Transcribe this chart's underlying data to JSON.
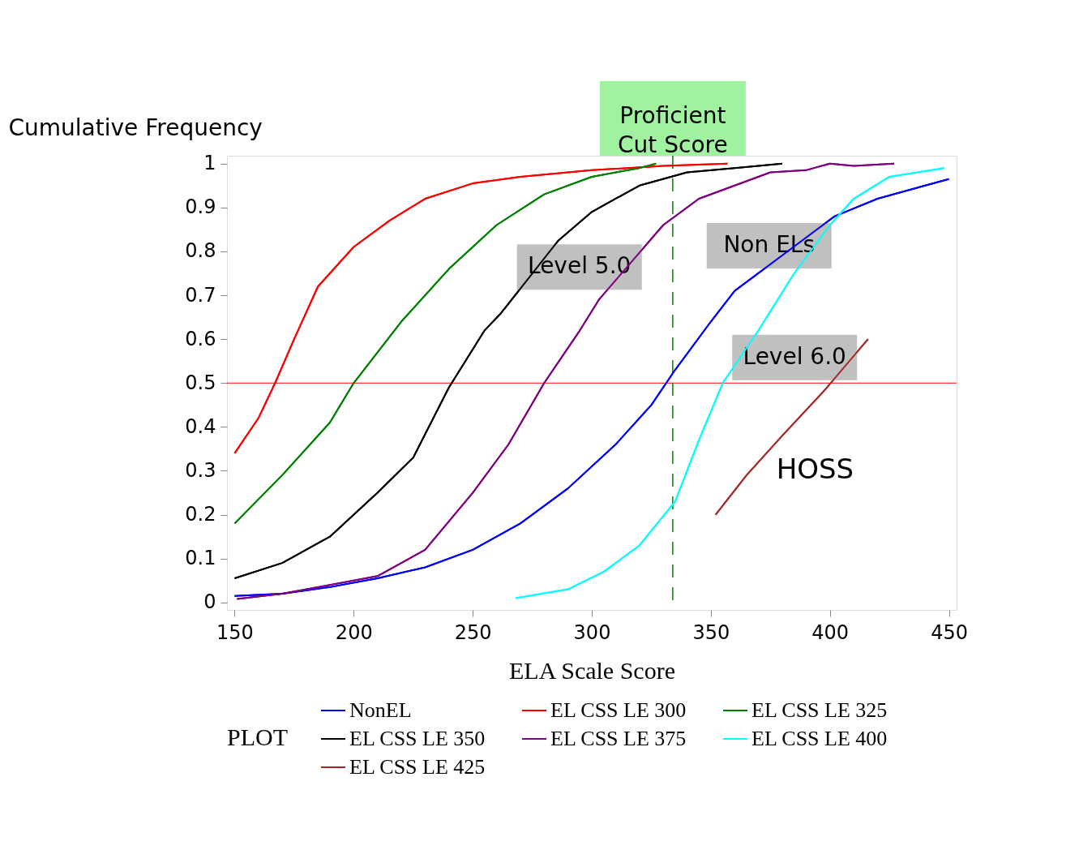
{
  "chart_data": {
    "type": "line",
    "xlabel": "ELA Scale Score",
    "ylabel": "Cumulative Frequency",
    "legend_title": "PLOT",
    "legend": "bottom",
    "grid": false,
    "marker": "none",
    "line_style": "solid",
    "xlim": [
      148.5,
      451.5
    ],
    "ylim": [
      -0.017,
      1.018
    ],
    "xticks": [
      150,
      200,
      250,
      300,
      350,
      400,
      450
    ],
    "yticks": [
      0,
      0.1,
      0.2,
      0.3,
      0.4,
      0.5,
      0.6,
      0.7,
      0.8,
      0.9,
      1
    ],
    "series": [
      {
        "name": "NonEL",
        "color": "#0000ff",
        "x": [
          150,
          170,
          190,
          210,
          230,
          250,
          270,
          290,
          310,
          325,
          335,
          350,
          360,
          402,
          420,
          440,
          450
        ],
        "values": [
          0.015,
          0.02,
          0.035,
          0.055,
          0.08,
          0.12,
          0.18,
          0.26,
          0.36,
          0.45,
          0.53,
          0.64,
          0.71,
          0.88,
          0.92,
          0.95,
          0.965
        ]
      },
      {
        "name": "EL CSS LE 300",
        "color": "#ff0000",
        "x": [
          150,
          160,
          167,
          175,
          185,
          200,
          215,
          230,
          250,
          270,
          300,
          330,
          357
        ],
        "values": [
          0.34,
          0.42,
          0.5,
          0.6,
          0.72,
          0.81,
          0.87,
          0.92,
          0.955,
          0.97,
          0.985,
          0.995,
          1.0
        ]
      },
      {
        "name": "EL CSS LE 325",
        "color": "#008000",
        "x": [
          150,
          170,
          190,
          200,
          220,
          240,
          260,
          280,
          300,
          320,
          327
        ],
        "values": [
          0.18,
          0.29,
          0.41,
          0.5,
          0.64,
          0.76,
          0.86,
          0.93,
          0.97,
          0.99,
          1.0
        ]
      },
      {
        "name": "EL CSS LE 350",
        "color": "#000000",
        "x": [
          150,
          170,
          190,
          210,
          225,
          240,
          255,
          262,
          286,
          300,
          320,
          340,
          360,
          380
        ],
        "values": [
          0.055,
          0.09,
          0.15,
          0.25,
          0.33,
          0.49,
          0.62,
          0.66,
          0.825,
          0.89,
          0.95,
          0.98,
          0.99,
          1.0
        ]
      },
      {
        "name": "EL CSS LE 375",
        "color": "#800080",
        "x": [
          151,
          170,
          190,
          210,
          230,
          250,
          265,
          280,
          295,
          303,
          330,
          345,
          360,
          375,
          390,
          400,
          410,
          427
        ],
        "values": [
          0.008,
          0.02,
          0.04,
          0.06,
          0.12,
          0.25,
          0.36,
          0.5,
          0.62,
          0.69,
          0.86,
          0.92,
          0.95,
          0.98,
          0.985,
          1.0,
          0.995,
          1.0
        ]
      },
      {
        "name": "EL CSS LE 400",
        "color": "#00ffff",
        "x": [
          268,
          290,
          305,
          320,
          335,
          345,
          355,
          370,
          385,
          400,
          410,
          425,
          448
        ],
        "values": [
          0.01,
          0.03,
          0.07,
          0.13,
          0.23,
          0.37,
          0.5,
          0.62,
          0.75,
          0.86,
          0.92,
          0.97,
          0.99
        ]
      },
      {
        "name": "EL CSS LE 425",
        "color": "#a52a2a",
        "x": [
          352,
          365,
          380,
          398,
          416
        ],
        "values": [
          0.2,
          0.29,
          0.38,
          0.485,
          0.6
        ]
      }
    ],
    "ref_lines": [
      {
        "axis": "y",
        "value": 0.5,
        "color": "#ff0000",
        "line_style": "solid"
      },
      {
        "axis": "x",
        "value": 334,
        "label": "Proficient Cut Score",
        "color": "#008000",
        "line_style": "dashed"
      }
    ],
    "annotations": [
      "Level 5.0",
      "Non ELs",
      "Level 6.0",
      "HOSS"
    ]
  }
}
